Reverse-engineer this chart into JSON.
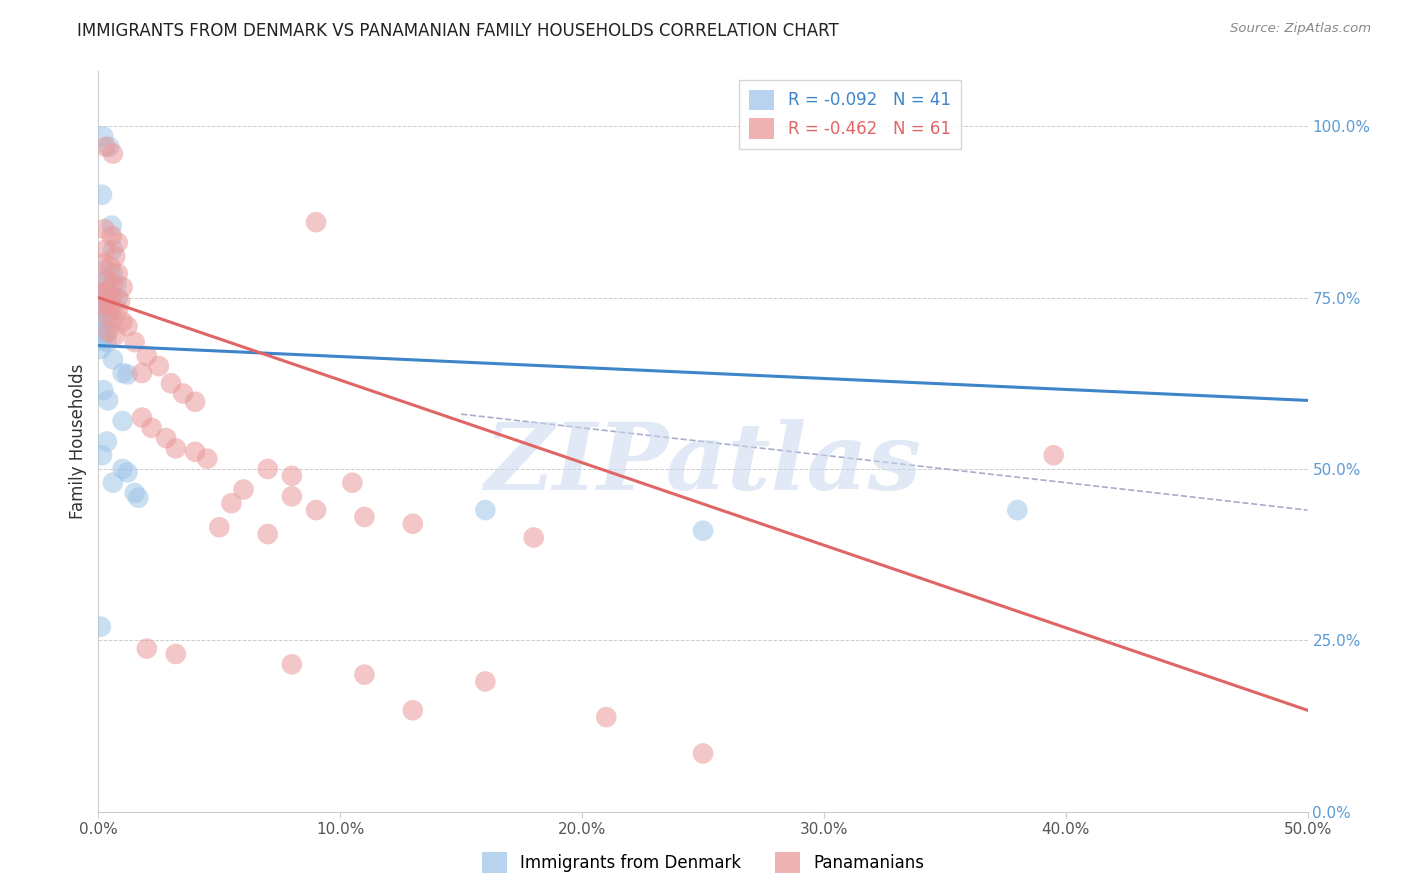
{
  "title": "IMMIGRANTS FROM DENMARK VS PANAMANIAN FAMILY HOUSEHOLDS CORRELATION CHART",
  "source": "Source: ZipAtlas.com",
  "ylabel": "Family Households",
  "xlim": [
    0.0,
    0.5
  ],
  "ylim": [
    0.0,
    1.08
  ],
  "xtick_vals": [
    0.0,
    0.1,
    0.2,
    0.3,
    0.4,
    0.5
  ],
  "xtick_labels": [
    "0.0%",
    "10.0%",
    "20.0%",
    "30.0%",
    "40.0%",
    "50.0%"
  ],
  "ytick_vals": [
    0.0,
    0.25,
    0.5,
    0.75,
    1.0
  ],
  "ytick_labels": [
    "0.0%",
    "25.0%",
    "50.0%",
    "75.0%",
    "100.0%"
  ],
  "legend_entry1": "R = -0.092   N = 41",
  "legend_entry2": "R = -0.462   N = 61",
  "legend_label1": "Immigrants from Denmark",
  "legend_label2": "Panamanians",
  "blue_color": "#9fc5e8",
  "pink_color": "#ea9999",
  "blue_line_color": "#3d85c8",
  "pink_line_color": "#e06666",
  "dashed_line_color": "#aaaacc",
  "watermark_text": "ZIPatlas",
  "blue_scatter": [
    [
      0.002,
      0.985
    ],
    [
      0.0045,
      0.97
    ],
    [
      0.0015,
      0.9
    ],
    [
      0.0055,
      0.855
    ],
    [
      0.006,
      0.82
    ],
    [
      0.0025,
      0.79
    ],
    [
      0.006,
      0.785
    ],
    [
      0.0035,
      0.775
    ],
    [
      0.0075,
      0.77
    ],
    [
      0.002,
      0.76
    ],
    [
      0.005,
      0.755
    ],
    [
      0.008,
      0.75
    ],
    [
      0.001,
      0.748
    ],
    [
      0.003,
      0.745
    ],
    [
      0.002,
      0.735
    ],
    [
      0.005,
      0.73
    ],
    [
      0.0015,
      0.72
    ],
    [
      0.004,
      0.718
    ],
    [
      0.0025,
      0.71
    ],
    [
      0.001,
      0.7
    ],
    [
      0.003,
      0.698
    ],
    [
      0.0015,
      0.688
    ],
    [
      0.0035,
      0.685
    ],
    [
      0.001,
      0.675
    ],
    [
      0.006,
      0.66
    ],
    [
      0.01,
      0.64
    ],
    [
      0.012,
      0.638
    ],
    [
      0.002,
      0.615
    ],
    [
      0.004,
      0.6
    ],
    [
      0.01,
      0.57
    ],
    [
      0.0035,
      0.54
    ],
    [
      0.0015,
      0.52
    ],
    [
      0.01,
      0.5
    ],
    [
      0.012,
      0.495
    ],
    [
      0.006,
      0.48
    ],
    [
      0.015,
      0.465
    ],
    [
      0.0165,
      0.458
    ],
    [
      0.001,
      0.27
    ],
    [
      0.16,
      0.44
    ],
    [
      0.25,
      0.41
    ],
    [
      0.38,
      0.44
    ]
  ],
  "pink_scatter": [
    [
      0.003,
      0.97
    ],
    [
      0.006,
      0.96
    ],
    [
      0.0025,
      0.85
    ],
    [
      0.0055,
      0.84
    ],
    [
      0.008,
      0.83
    ],
    [
      0.003,
      0.82
    ],
    [
      0.007,
      0.81
    ],
    [
      0.002,
      0.8
    ],
    [
      0.005,
      0.795
    ],
    [
      0.008,
      0.785
    ],
    [
      0.003,
      0.775
    ],
    [
      0.006,
      0.77
    ],
    [
      0.01,
      0.765
    ],
    [
      0.004,
      0.76
    ],
    [
      0.0015,
      0.755
    ],
    [
      0.0055,
      0.75
    ],
    [
      0.009,
      0.745
    ],
    [
      0.002,
      0.74
    ],
    [
      0.005,
      0.738
    ],
    [
      0.008,
      0.732
    ],
    [
      0.003,
      0.725
    ],
    [
      0.006,
      0.72
    ],
    [
      0.01,
      0.715
    ],
    [
      0.012,
      0.708
    ],
    [
      0.004,
      0.7
    ],
    [
      0.007,
      0.695
    ],
    [
      0.015,
      0.685
    ],
    [
      0.02,
      0.665
    ],
    [
      0.025,
      0.65
    ],
    [
      0.018,
      0.64
    ],
    [
      0.03,
      0.625
    ],
    [
      0.035,
      0.61
    ],
    [
      0.04,
      0.598
    ],
    [
      0.018,
      0.575
    ],
    [
      0.022,
      0.56
    ],
    [
      0.028,
      0.545
    ],
    [
      0.032,
      0.53
    ],
    [
      0.04,
      0.525
    ],
    [
      0.045,
      0.515
    ],
    [
      0.07,
      0.5
    ],
    [
      0.08,
      0.49
    ],
    [
      0.105,
      0.48
    ],
    [
      0.06,
      0.47
    ],
    [
      0.08,
      0.46
    ],
    [
      0.055,
      0.45
    ],
    [
      0.09,
      0.44
    ],
    [
      0.11,
      0.43
    ],
    [
      0.13,
      0.42
    ],
    [
      0.05,
      0.415
    ],
    [
      0.07,
      0.405
    ],
    [
      0.18,
      0.4
    ],
    [
      0.395,
      0.52
    ],
    [
      0.09,
      0.86
    ],
    [
      0.02,
      0.238
    ],
    [
      0.032,
      0.23
    ],
    [
      0.08,
      0.215
    ],
    [
      0.11,
      0.2
    ],
    [
      0.16,
      0.19
    ],
    [
      0.21,
      0.138
    ],
    [
      0.25,
      0.085
    ],
    [
      0.13,
      0.148
    ]
  ],
  "blue_trend_x": [
    0.0,
    0.5
  ],
  "blue_trend_y": [
    0.68,
    0.6
  ],
  "pink_trend_x": [
    0.0,
    0.5
  ],
  "pink_trend_y": [
    0.75,
    0.148
  ],
  "dashed_trend_x": [
    0.15,
    0.5
  ],
  "dashed_trend_y": [
    0.58,
    0.44
  ]
}
